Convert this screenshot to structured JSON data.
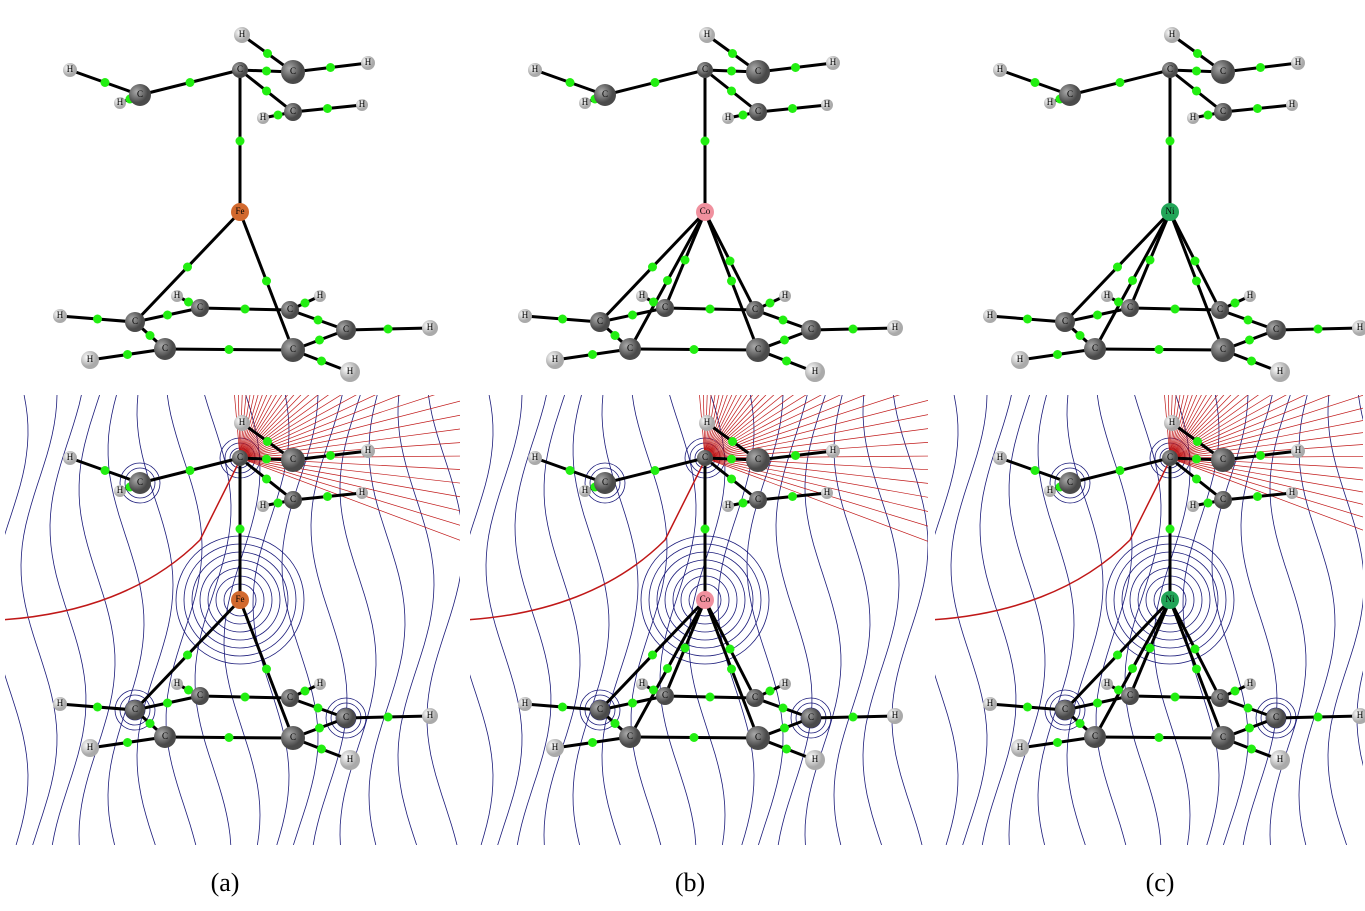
{
  "panels": [
    {
      "label": "(a)",
      "metal_color": "#d2692e",
      "top_atoms": [
        "C",
        "C",
        "H",
        "H",
        "C",
        "H",
        "H",
        "C",
        "H",
        "H",
        "Fe",
        "C",
        "C",
        "C",
        "C",
        "C",
        "C",
        "H",
        "H",
        "H",
        "H",
        "H",
        "H"
      ],
      "bottom_atoms": [
        "C",
        "C",
        "H",
        "H",
        "C",
        "H",
        "H",
        "C",
        "H",
        "H",
        "Fe",
        "C",
        "C",
        "C",
        "C",
        "C",
        "C",
        "H",
        "H",
        "H",
        "H",
        "H",
        "H"
      ]
    },
    {
      "label": "(b)",
      "metal_color": "#f0909e",
      "top_atoms": [
        "C",
        "C",
        "H",
        "H",
        "C",
        "H",
        "H",
        "C",
        "H",
        "H",
        "Co",
        "C",
        "C",
        "C",
        "C",
        "C",
        "C",
        "H",
        "H",
        "H",
        "H",
        "H",
        "H"
      ],
      "bottom_atoms": [
        "C",
        "C",
        "H",
        "H",
        "C",
        "H",
        "H",
        "C",
        "H",
        "H",
        "Co",
        "C",
        "C",
        "C",
        "C",
        "C",
        "C",
        "H",
        "H",
        "H",
        "H",
        "H",
        "H"
      ]
    },
    {
      "label": "(c)",
      "metal_color": "#22a558",
      "top_atoms": [
        "C",
        "C",
        "H",
        "H",
        "C",
        "H",
        "H",
        "C",
        "H",
        "H",
        "Ni",
        "C",
        "C",
        "C",
        "C",
        "C",
        "C",
        "H",
        "H",
        "H",
        "H",
        "H",
        "H"
      ],
      "bottom_atoms": [
        "C",
        "C",
        "H",
        "H",
        "C",
        "H",
        "H",
        "C",
        "H",
        "H",
        "Ni",
        "C",
        "C",
        "C",
        "C",
        "C",
        "C",
        "H",
        "H",
        "H",
        "H",
        "H",
        "H"
      ]
    }
  ]
}
